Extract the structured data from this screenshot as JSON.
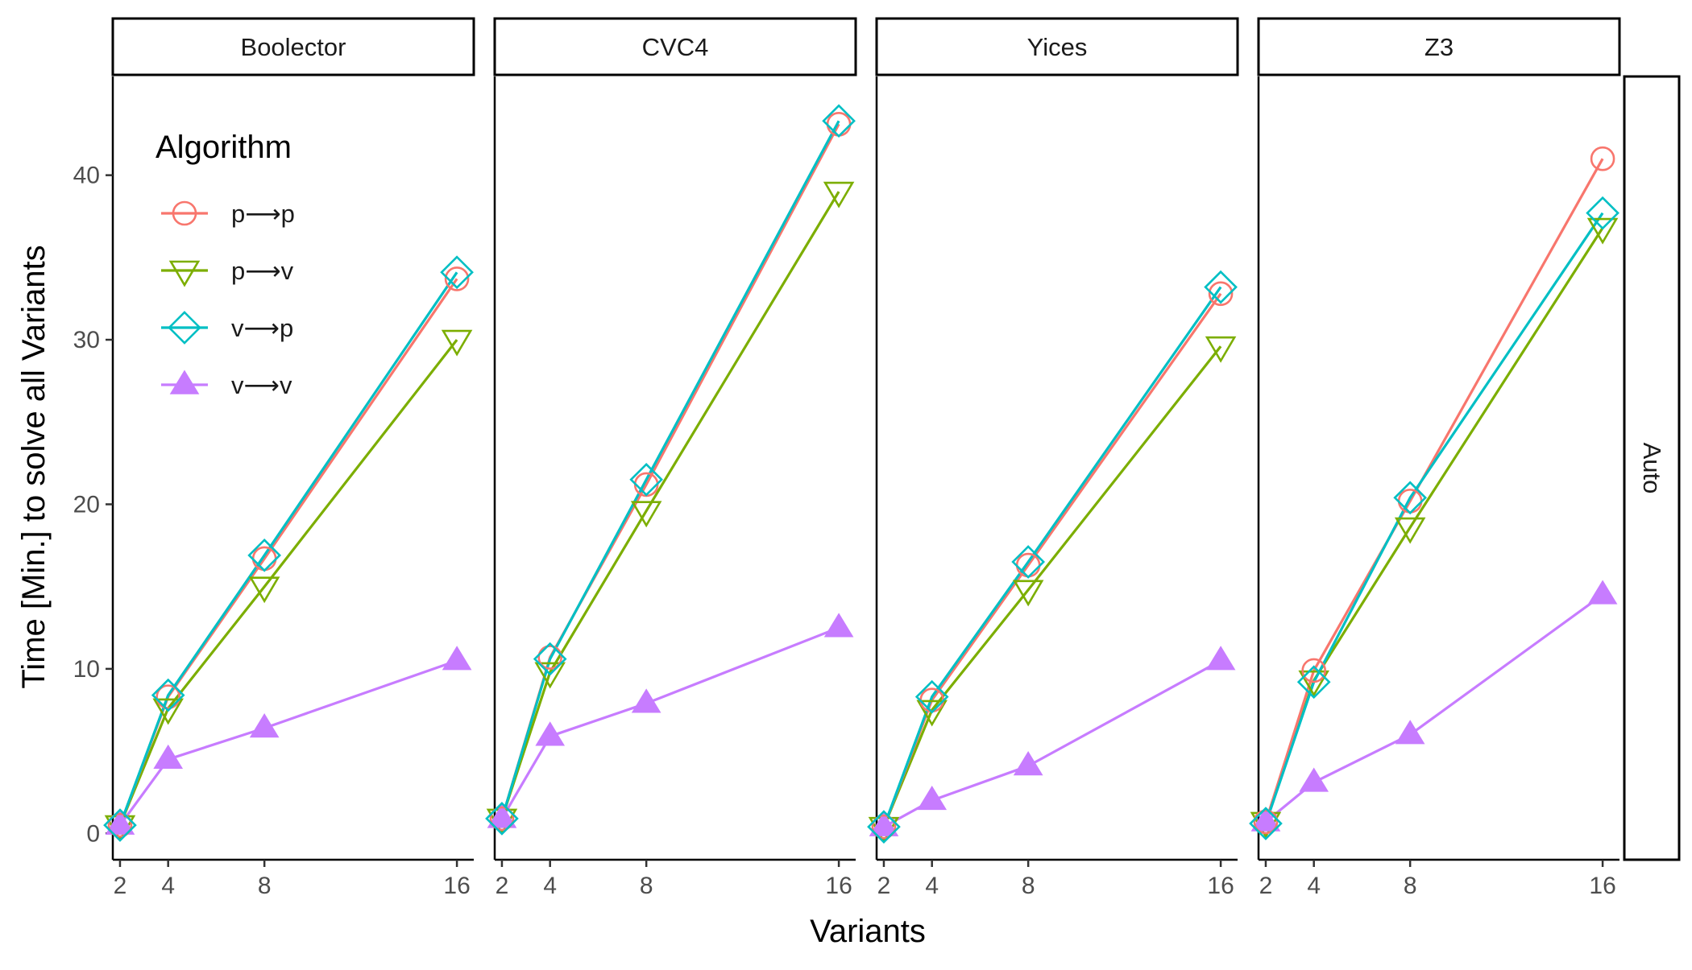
{
  "chart_data": {
    "type": "line",
    "facets": [
      "Boolector",
      "CVC4",
      "Yices",
      "Z3"
    ],
    "row_strip": "Auto",
    "xlabel": "Variants",
    "ylabel": "Time [Min.] to solve all Variants",
    "x_ticks": [
      2,
      4,
      8,
      16
    ],
    "y_ticks": [
      0,
      10,
      20,
      30,
      40
    ],
    "xlim": [
      1.7,
      16.7
    ],
    "ylim": [
      -1.6,
      46.0
    ],
    "grid": false,
    "legend": {
      "title": "Algorithm",
      "placement": "top-left-inside-first-panel",
      "entries": [
        {
          "label": "p⟶p",
          "color": "#F8766D",
          "shape": "circle-open"
        },
        {
          "label": "p⟶v",
          "color": "#7CAE00",
          "shape": "triangle-down-open"
        },
        {
          "label": "v⟶p",
          "color": "#00BFC4",
          "shape": "diamond-open"
        },
        {
          "label": "v⟶v",
          "color": "#C77CFF",
          "shape": "triangle-up-filled"
        }
      ]
    },
    "x": [
      2,
      4,
      8,
      16
    ],
    "panels": [
      {
        "facet": "Boolector",
        "series": [
          {
            "name": "p⟶p",
            "values": [
              0.5,
              8.3,
              16.7,
              33.7
            ]
          },
          {
            "name": "p⟶v",
            "values": [
              0.5,
              7.6,
              15.0,
              30.0
            ]
          },
          {
            "name": "v⟶p",
            "values": [
              0.5,
              8.4,
              16.9,
              34.1
            ]
          },
          {
            "name": "v⟶v",
            "values": [
              0.5,
              4.5,
              6.4,
              10.5
            ]
          }
        ]
      },
      {
        "facet": "CVC4",
        "series": [
          {
            "name": "p⟶p",
            "values": [
              0.9,
              10.7,
              21.2,
              43.1
            ]
          },
          {
            "name": "p⟶v",
            "values": [
              0.9,
              9.8,
              19.6,
              39.0
            ]
          },
          {
            "name": "v⟶p",
            "values": [
              0.9,
              10.6,
              21.5,
              43.3
            ]
          },
          {
            "name": "v⟶v",
            "values": [
              0.9,
              5.9,
              7.9,
              12.5
            ]
          }
        ]
      },
      {
        "facet": "Yices",
        "series": [
          {
            "name": "p⟶p",
            "values": [
              0.4,
              8.1,
              16.3,
              32.8
            ]
          },
          {
            "name": "p⟶v",
            "values": [
              0.4,
              7.5,
              14.8,
              29.6
            ]
          },
          {
            "name": "v⟶p",
            "values": [
              0.4,
              8.3,
              16.5,
              33.2
            ]
          },
          {
            "name": "v⟶v",
            "values": [
              0.4,
              2.0,
              4.1,
              10.5
            ]
          }
        ]
      },
      {
        "facet": "Z3",
        "series": [
          {
            "name": "p⟶p",
            "values": [
              0.7,
              9.9,
              20.2,
              41.0
            ]
          },
          {
            "name": "p⟶v",
            "values": [
              0.7,
              9.3,
              18.6,
              36.8
            ]
          },
          {
            "name": "v⟶p",
            "values": [
              0.6,
              9.2,
              20.4,
              37.7
            ]
          },
          {
            "name": "v⟶v",
            "values": [
              0.7,
              3.1,
              6.0,
              14.5
            ]
          }
        ]
      }
    ]
  }
}
